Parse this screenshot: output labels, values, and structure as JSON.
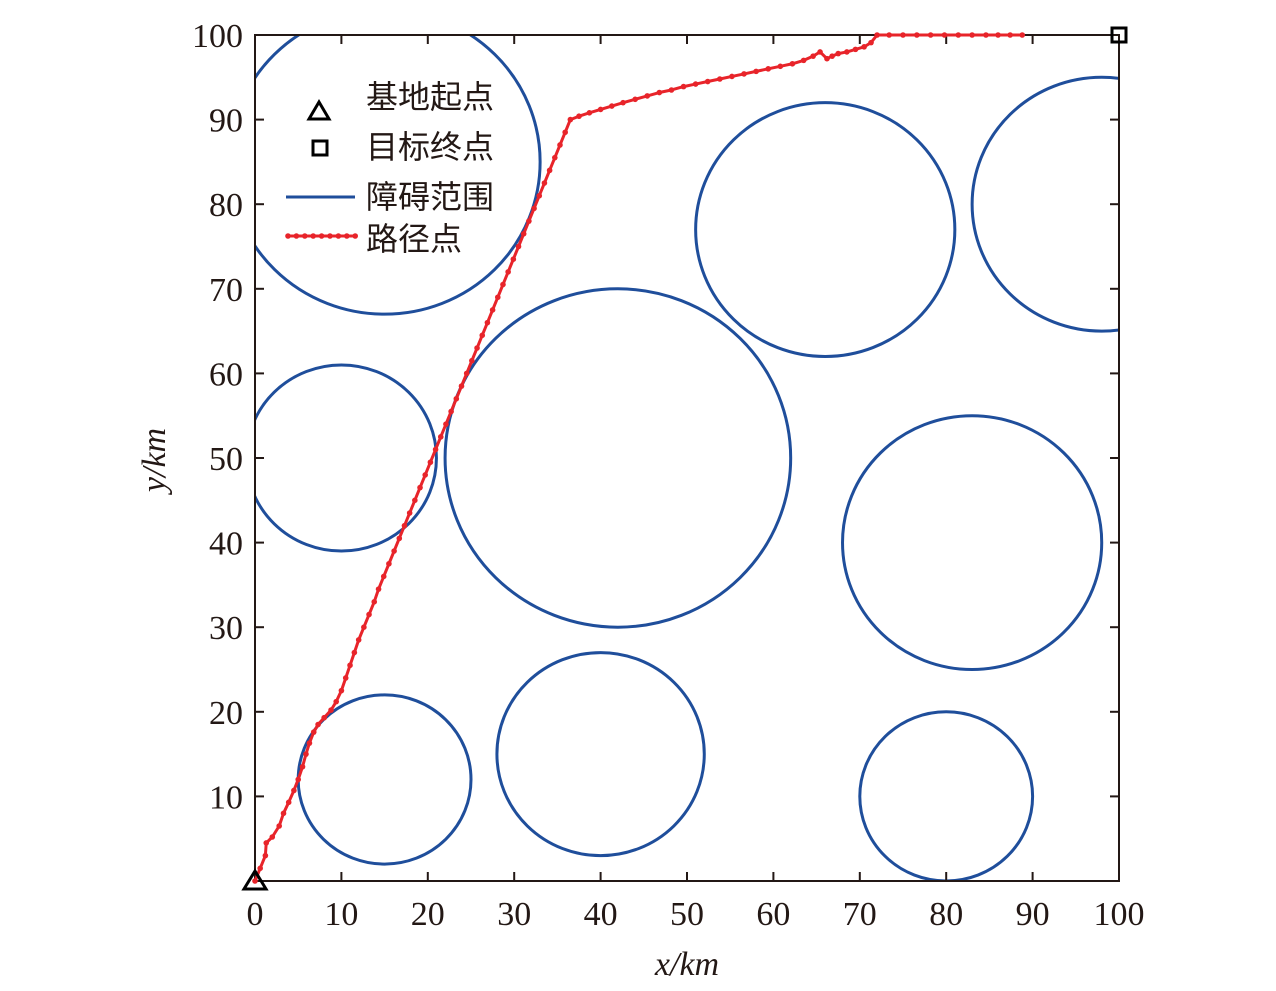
{
  "chart_data": {
    "type": "scatter",
    "title": "",
    "xlabel": "x/km",
    "ylabel": "y/km",
    "xlim": [
      0,
      100
    ],
    "ylim": [
      0,
      100
    ],
    "xticks": [
      0,
      10,
      20,
      30,
      40,
      50,
      60,
      70,
      80,
      90,
      100
    ],
    "yticks": [
      10,
      20,
      30,
      40,
      50,
      60,
      70,
      80,
      90,
      100
    ],
    "grid": false,
    "legend_position": "top-left",
    "legend": [
      {
        "label": "基地起点",
        "marker": "triangle"
      },
      {
        "label": "目标终点",
        "marker": "square"
      },
      {
        "label": "障碍范围",
        "marker": "line"
      },
      {
        "label": "路径点",
        "marker": "line-dot"
      }
    ],
    "start": {
      "x": 0,
      "y": 0
    },
    "goal": {
      "x": 100,
      "y": 100
    },
    "obstacles": [
      {
        "cx": 15,
        "cy": 85,
        "r": 18
      },
      {
        "cx": 10,
        "cy": 50,
        "r": 11
      },
      {
        "cx": 42,
        "cy": 50,
        "r": 20
      },
      {
        "cx": 66,
        "cy": 77,
        "r": 15
      },
      {
        "cx": 98,
        "cy": 80,
        "r": 15
      },
      {
        "cx": 83,
        "cy": 40,
        "r": 15
      },
      {
        "cx": 15,
        "cy": 12,
        "r": 10
      },
      {
        "cx": 40,
        "cy": 15,
        "r": 12
      },
      {
        "cx": 80,
        "cy": 10,
        "r": 10
      }
    ],
    "path": [
      [
        0,
        0
      ],
      [
        0.6,
        1.5
      ],
      [
        1.2,
        3
      ],
      [
        1.3,
        4.5
      ],
      [
        2,
        5.2
      ],
      [
        2.8,
        6.5
      ],
      [
        3.3,
        8
      ],
      [
        3.9,
        9.3
      ],
      [
        4.5,
        10.7
      ],
      [
        5,
        12
      ],
      [
        5.5,
        13.5
      ],
      [
        5.9,
        15
      ],
      [
        6.3,
        16.3
      ],
      [
        6.8,
        17.6
      ],
      [
        7.3,
        18.5
      ],
      [
        8,
        19.3
      ],
      [
        8.8,
        20.2
      ],
      [
        9.4,
        21.2
      ],
      [
        10,
        22.5
      ],
      [
        10.5,
        24
      ],
      [
        11,
        25.5
      ],
      [
        11.5,
        27
      ],
      [
        12,
        28.5
      ],
      [
        12.6,
        30
      ],
      [
        13.2,
        31.5
      ],
      [
        13.8,
        33
      ],
      [
        14.3,
        34.5
      ],
      [
        14.9,
        36
      ],
      [
        15.5,
        37.5
      ],
      [
        16.1,
        39
      ],
      [
        16.7,
        40.5
      ],
      [
        17.3,
        42
      ],
      [
        17.9,
        43.5
      ],
      [
        18.5,
        45
      ],
      [
        19.1,
        46.5
      ],
      [
        19.7,
        48
      ],
      [
        20.3,
        49.5
      ],
      [
        20.9,
        51
      ],
      [
        21.5,
        52.5
      ],
      [
        22.1,
        54
      ],
      [
        22.7,
        55.5
      ],
      [
        23.3,
        57
      ],
      [
        23.9,
        58.5
      ],
      [
        24.5,
        60
      ],
      [
        25.1,
        61.5
      ],
      [
        25.7,
        63
      ],
      [
        26.3,
        64.5
      ],
      [
        26.9,
        66
      ],
      [
        27.5,
        67.5
      ],
      [
        28.1,
        69
      ],
      [
        28.7,
        70.5
      ],
      [
        29.3,
        72
      ],
      [
        29.9,
        73.5
      ],
      [
        30.5,
        75
      ],
      [
        31.1,
        76.5
      ],
      [
        31.7,
        78
      ],
      [
        32.3,
        79.5
      ],
      [
        32.9,
        81
      ],
      [
        33.5,
        82.5
      ],
      [
        34.1,
        84
      ],
      [
        34.7,
        85.5
      ],
      [
        35.3,
        87
      ],
      [
        35.9,
        88.5
      ],
      [
        36.5,
        90
      ],
      [
        37.5,
        90.4
      ],
      [
        38.7,
        90.8
      ],
      [
        40,
        91.2
      ],
      [
        41.3,
        91.6
      ],
      [
        42.6,
        92
      ],
      [
        44,
        92.4
      ],
      [
        45.4,
        92.8
      ],
      [
        46.8,
        93.2
      ],
      [
        48.2,
        93.5
      ],
      [
        49.6,
        93.9
      ],
      [
        51,
        94.2
      ],
      [
        52.4,
        94.5
      ],
      [
        53.8,
        94.8
      ],
      [
        55.2,
        95.1
      ],
      [
        56.6,
        95.4
      ],
      [
        58,
        95.7
      ],
      [
        59.4,
        96
      ],
      [
        60.8,
        96.3
      ],
      [
        62.2,
        96.6
      ],
      [
        63.5,
        97
      ],
      [
        64.6,
        97.5
      ],
      [
        65.4,
        98
      ],
      [
        66.2,
        97.2
      ],
      [
        66.8,
        97.5
      ],
      [
        67.5,
        97.8
      ],
      [
        68.5,
        98
      ],
      [
        69.5,
        98.3
      ],
      [
        70.5,
        98.6
      ],
      [
        71.3,
        99.1
      ],
      [
        72,
        100
      ],
      [
        73.4,
        100
      ],
      [
        75,
        100
      ],
      [
        76.6,
        100
      ],
      [
        78.2,
        100
      ],
      [
        79.8,
        100
      ],
      [
        81.4,
        100
      ],
      [
        83,
        100
      ],
      [
        84.6,
        100
      ],
      [
        86,
        100
      ],
      [
        87.4,
        100
      ],
      [
        88.8,
        100
      ]
    ]
  }
}
